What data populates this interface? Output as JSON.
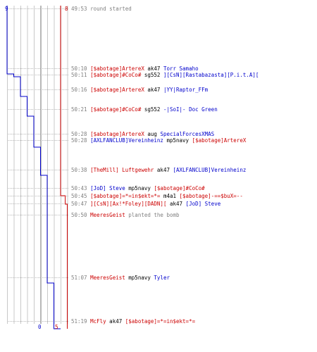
{
  "colors": {
    "team_a": "#0000cc",
    "team_b": "#cc0000",
    "text": "#000000",
    "time": "#808080",
    "grid": "#c8c8c8",
    "center": "#707070"
  },
  "chart_data": {
    "type": "line",
    "team_a": {
      "start": "9",
      "end": "0"
    },
    "team_b": {
      "start": "8",
      "end": "5"
    },
    "x_max": 9,
    "series": [
      {
        "color": "#0000cc",
        "points": [
          [
            0,
            0
          ],
          [
            0,
            97
          ],
          [
            1,
            97
          ],
          [
            1,
            101
          ],
          [
            2,
            101
          ],
          [
            2,
            105
          ],
          [
            2,
            110
          ],
          [
            2,
            129
          ],
          [
            3,
            129
          ],
          [
            3,
            157
          ],
          [
            4,
            157
          ],
          [
            4,
            195
          ],
          [
            4,
            201
          ],
          [
            5,
            201
          ],
          [
            5,
            241
          ],
          [
            6,
            241
          ],
          [
            6,
            270
          ],
          [
            6,
            282
          ],
          [
            6,
            293
          ],
          [
            6,
            305
          ],
          [
            6,
            394
          ],
          [
            7,
            394
          ],
          [
            7,
            459
          ],
          [
            8,
            459
          ]
        ]
      },
      {
        "color": "#cc0000",
        "points": [
          [
            8,
            0
          ],
          [
            8,
            270
          ],
          [
            8.7,
            270
          ],
          [
            8.7,
            282
          ],
          [
            9,
            282
          ],
          [
            9,
            459
          ]
        ]
      }
    ]
  },
  "log": [
    {
      "time": "49:53",
      "segs": [
        {
          "text": "round started",
          "c": "time"
        }
      ]
    },
    {
      "time": "50:10",
      "segs": [
        {
          "text": "[$abotage]ArtereX",
          "c": "team_b"
        },
        {
          "text": " ak47 ",
          "c": "text"
        },
        {
          "text": "Torr Samaho",
          "c": "team_a"
        }
      ]
    },
    {
      "time": "50:11",
      "segs": [
        {
          "text": "[$abotage]#CoCo#",
          "c": "team_b"
        },
        {
          "text": " sg552 ",
          "c": "text"
        },
        {
          "text": "][CsN][Rastabazasta][P.i.t.A][",
          "c": "team_a"
        }
      ]
    },
    {
      "time": "50:16",
      "segs": [
        {
          "text": "[$abotage]ArtereX",
          "c": "team_b"
        },
        {
          "text": " ak47 ",
          "c": "text"
        },
        {
          "text": "|YY|Raptor_FFm",
          "c": "team_a"
        }
      ]
    },
    {
      "time": "50:21",
      "segs": [
        {
          "text": "[$abotage]#CoCo#",
          "c": "team_b"
        },
        {
          "text": " sg552 ",
          "c": "text"
        },
        {
          "text": "-|SoI|- Doc Green",
          "c": "team_a"
        }
      ]
    },
    {
      "time": "50:28",
      "segs": [
        {
          "text": "[$abotage]ArtereX",
          "c": "team_b"
        },
        {
          "text": " aug ",
          "c": "text"
        },
        {
          "text": "SpecialForcesXMAS",
          "c": "team_a"
        }
      ]
    },
    {
      "time": "50:28",
      "segs": [
        {
          "text": "[AXLFANCLUB]Vereinheinz",
          "c": "team_a"
        },
        {
          "text": " mp5navy ",
          "c": "text"
        },
        {
          "text": "[$abotage]ArtereX",
          "c": "team_b"
        }
      ]
    },
    {
      "time": "50:38",
      "segs": [
        {
          "text": "[TheMill] Luftgewehr",
          "c": "team_b"
        },
        {
          "text": " ak47 ",
          "c": "text"
        },
        {
          "text": "[AXLFANCLUB]Vereinheinz",
          "c": "team_a"
        }
      ]
    },
    {
      "time": "50:43",
      "segs": [
        {
          "text": "[JoD] Steve",
          "c": "team_a"
        },
        {
          "text": " mp5navy ",
          "c": "text"
        },
        {
          "text": "[$abotage]#CoCo#",
          "c": "team_b"
        }
      ]
    },
    {
      "time": "50:45",
      "segs": [
        {
          "text": "[$abotage]=*=in$ekt=*=",
          "c": "team_b"
        },
        {
          "text": " m4a1 ",
          "c": "text"
        },
        {
          "text": "[$abotage]-==$buX=--",
          "c": "team_b"
        }
      ]
    },
    {
      "time": "50:47",
      "segs": [
        {
          "text": "][CsN][Ax!*Foley][DADN][",
          "c": "team_b"
        },
        {
          "text": " ak47 ",
          "c": "text"
        },
        {
          "text": "[JoD] Steve",
          "c": "team_a"
        }
      ]
    },
    {
      "time": "50:50",
      "segs": [
        {
          "text": "MeeresGeist",
          "c": "team_b"
        },
        {
          "text": " planted the bomb",
          "c": "time"
        }
      ]
    },
    {
      "time": "51:07",
      "segs": [
        {
          "text": "MeeresGeist",
          "c": "team_b"
        },
        {
          "text": " mp5navy ",
          "c": "text"
        },
        {
          "text": "Tyler",
          "c": "team_a"
        }
      ]
    },
    {
      "time": "51:19",
      "segs": [
        {
          "text": "McFly",
          "c": "team_b"
        },
        {
          "text": " ak47 ",
          "c": "text"
        },
        {
          "text": "[$abotage]=*=in$ekt=*=",
          "c": "team_b"
        }
      ]
    }
  ]
}
